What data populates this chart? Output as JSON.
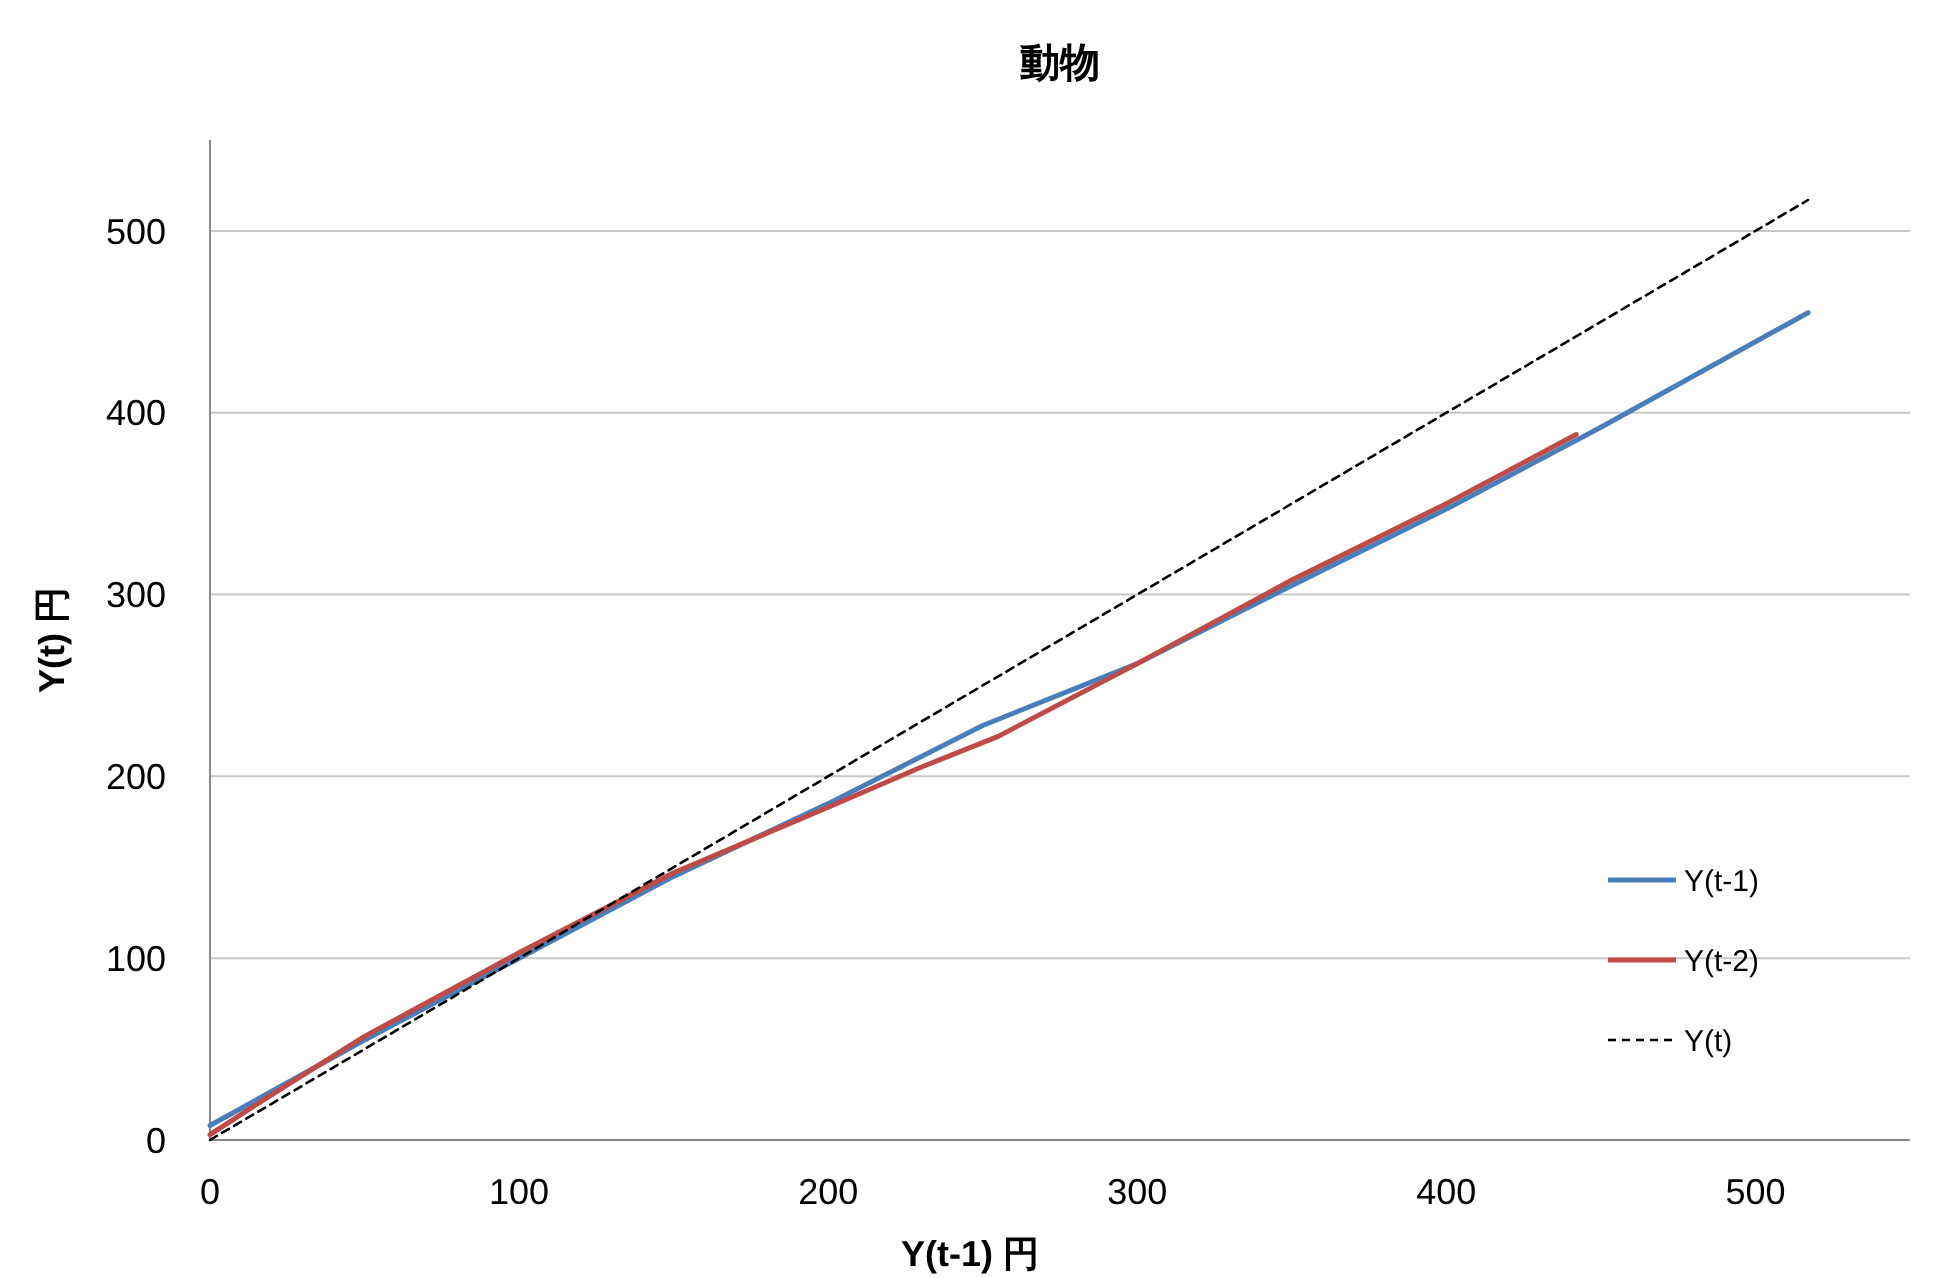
{
  "chart_data": {
    "type": "line",
    "title": "動物",
    "xlabel": "Y(t-1) 円",
    "ylabel": "Y(t) 円",
    "xlim": [
      0,
      550
    ],
    "xticks": [
      0,
      100,
      200,
      300,
      400,
      500
    ],
    "ylim": [
      0,
      550
    ],
    "yticks": [
      0,
      100,
      200,
      300,
      400,
      500
    ],
    "grid": "y",
    "legend": "right",
    "marker": "none",
    "series": [
      {
        "name": "Y(t-1)",
        "color": "#4a7ebb",
        "x": [
          0,
          50,
          100,
          150,
          200,
          250,
          300,
          350,
          400,
          450,
          517
        ],
        "values": [
          8,
          55,
          100,
          145,
          185,
          228,
          262,
          305,
          347,
          392,
          455
        ]
      },
      {
        "name": "Y(t-2)",
        "color": "#be4b48",
        "x": [
          0,
          20,
          50,
          100,
          150,
          200,
          230,
          255,
          300,
          350,
          400,
          442
        ],
        "values": [
          3,
          25,
          57,
          103,
          147,
          183,
          205,
          222,
          262,
          308,
          350,
          388
        ]
      },
      {
        "name": "Y(t)",
        "color": "#000000",
        "line_style": "dashed",
        "x": [
          0,
          517
        ],
        "values": [
          0,
          517
        ]
      }
    ]
  }
}
